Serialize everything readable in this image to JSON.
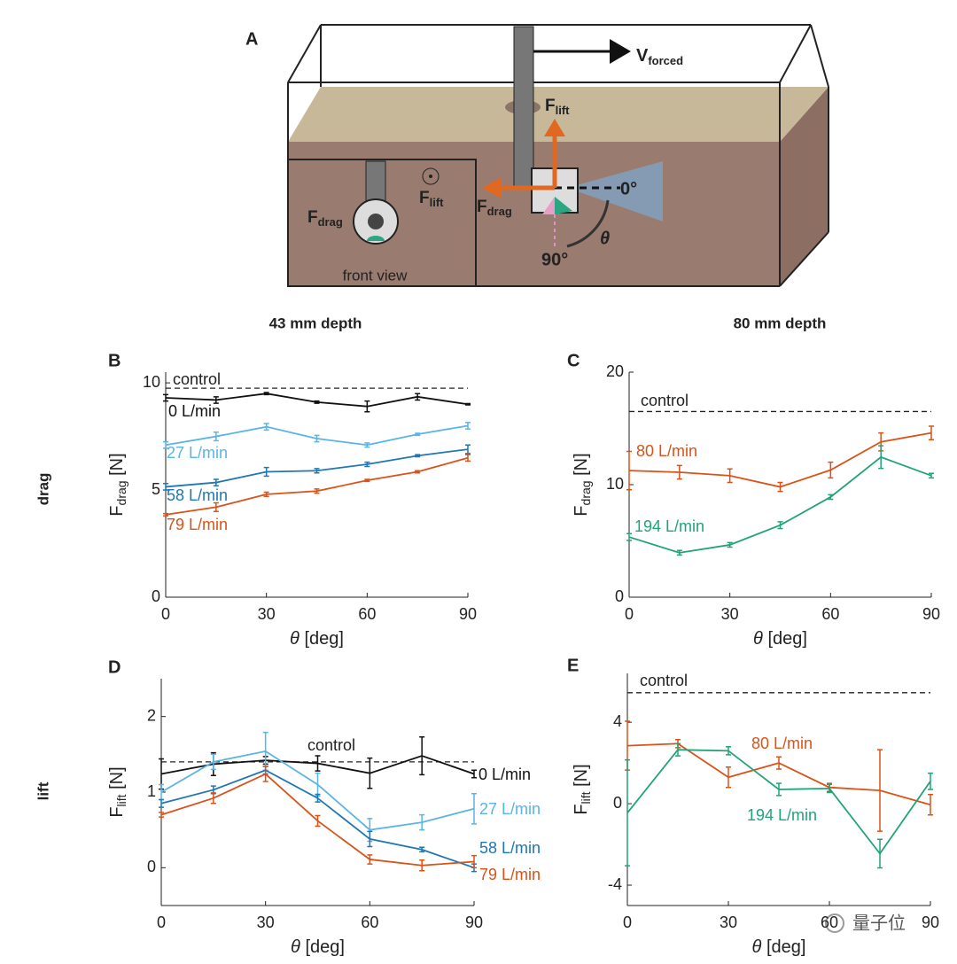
{
  "figure": {
    "col_headers": [
      "43 mm depth",
      "80 mm depth"
    ],
    "row_labels": [
      "drag",
      "lift"
    ],
    "watermark": "量子位"
  },
  "diagram": {
    "label": "A",
    "v_forced": [
      "V",
      "forced"
    ],
    "f_lift": [
      "F",
      "lift"
    ],
    "f_drag": [
      "F",
      "drag"
    ],
    "front_f_lift": [
      "F",
      "lift"
    ],
    "front_f_drag": [
      "F",
      "drag"
    ],
    "angle_0": "0°",
    "angle_theta": "θ",
    "angle_90": "90°",
    "front_view": "front view"
  },
  "chart_data": [
    {
      "type": "line",
      "label": "B",
      "xlabel": [
        "θ",
        " [deg]"
      ],
      "ylabel": [
        "F",
        "drag",
        " [N]"
      ],
      "x": [
        0,
        15,
        30,
        45,
        60,
        75,
        90
      ],
      "xlim": [
        0,
        90
      ],
      "xticks": [
        0,
        30,
        60,
        90
      ],
      "ylim": [
        0,
        10.5
      ],
      "yticks": [
        0,
        5,
        10
      ],
      "reference_line": {
        "label": "control",
        "value": 9.75
      },
      "series": [
        {
          "name": "0 L/min",
          "color": "#111111",
          "values": [
            9.3,
            9.2,
            9.5,
            9.1,
            8.9,
            9.35,
            9.0
          ],
          "errors": [
            0.15,
            0.15,
            0.05,
            0.05,
            0.25,
            0.15,
            0.03
          ]
        },
        {
          "name": "27 L/min",
          "color": "#5ab4e5",
          "values": [
            7.1,
            7.5,
            7.95,
            7.4,
            7.1,
            7.6,
            8.0
          ],
          "errors": [
            0.15,
            0.2,
            0.15,
            0.15,
            0.1,
            0.05,
            0.15
          ]
        },
        {
          "name": "58 L/min",
          "color": "#1f77b4",
          "values": [
            5.15,
            5.35,
            5.85,
            5.9,
            6.2,
            6.6,
            6.9
          ],
          "errors": [
            0.15,
            0.15,
            0.2,
            0.1,
            0.1,
            0.05,
            0.2
          ]
        },
        {
          "name": "79 L/min",
          "color": "#d95319",
          "values": [
            3.85,
            4.2,
            4.8,
            4.95,
            5.45,
            5.85,
            6.5
          ],
          "errors": [
            0.05,
            0.2,
            0.1,
            0.1,
            0.05,
            0.05,
            0.15
          ]
        }
      ]
    },
    {
      "type": "line",
      "label": "C",
      "xlabel": [
        "θ",
        " [deg]"
      ],
      "ylabel": [
        "F",
        "drag",
        " [N]"
      ],
      "x": [
        0,
        15,
        30,
        45,
        60,
        75,
        90
      ],
      "xlim": [
        0,
        90
      ],
      "xticks": [
        0,
        30,
        60,
        90
      ],
      "ylim": [
        0,
        20
      ],
      "yticks": [
        0,
        10,
        20
      ],
      "reference_line": {
        "label": "control",
        "value": 16.5
      },
      "series": [
        {
          "name": "80 L/min",
          "color": "#d95319",
          "values": [
            11.25,
            11.1,
            10.8,
            9.8,
            11.3,
            13.8,
            14.6
          ],
          "errors": [
            1.7,
            0.6,
            0.6,
            0.4,
            0.7,
            0.8,
            0.6
          ]
        },
        {
          "name": "194 L/min",
          "color": "#21a37a",
          "values": [
            5.35,
            3.95,
            4.65,
            6.4,
            8.9,
            12.45,
            10.8
          ],
          "errors": [
            0.3,
            0.2,
            0.2,
            0.3,
            0.2,
            1.0,
            0.2
          ]
        }
      ]
    },
    {
      "type": "line",
      "label": "D",
      "xlabel": [
        "θ",
        " [deg]"
      ],
      "ylabel": [
        "F",
        "lift",
        " [N]"
      ],
      "x": [
        0,
        15,
        30,
        45,
        60,
        75,
        90
      ],
      "xlim": [
        0,
        90
      ],
      "xticks": [
        0,
        30,
        60,
        90
      ],
      "ylim": [
        -0.5,
        2.5
      ],
      "yticks": [
        0,
        1,
        2
      ],
      "reference_line": {
        "label": "control",
        "value": 1.4
      },
      "series": [
        {
          "name": "0 L/min",
          "color": "#111111",
          "values": [
            1.24,
            1.37,
            1.42,
            1.38,
            1.25,
            1.48,
            1.24
          ],
          "errors": [
            0.2,
            0.15,
            0.05,
            0.1,
            0.2,
            0.25,
            0.05
          ]
        },
        {
          "name": "27 L/min",
          "color": "#5ab4e5",
          "values": [
            1.0,
            1.4,
            1.54,
            1.1,
            0.5,
            0.6,
            0.78
          ],
          "errors": [
            0.1,
            0.1,
            0.25,
            0.15,
            0.15,
            0.1,
            0.2
          ]
        },
        {
          "name": "58 L/min",
          "color": "#1f77b4",
          "values": [
            0.85,
            1.03,
            1.29,
            0.92,
            0.38,
            0.24,
            0.0
          ],
          "errors": [
            0.05,
            0.05,
            0.05,
            0.05,
            0.1,
            0.03,
            0.05
          ]
        },
        {
          "name": "79 L/min",
          "color": "#d95319",
          "values": [
            0.7,
            0.92,
            1.24,
            0.62,
            0.11,
            0.03,
            0.08
          ],
          "errors": [
            0.03,
            0.07,
            0.1,
            0.07,
            0.06,
            0.07,
            0.08
          ]
        }
      ]
    },
    {
      "type": "line",
      "label": "E",
      "xlabel": [
        "θ",
        " [deg]"
      ],
      "ylabel": [
        "F",
        "lift",
        " [N]"
      ],
      "x": [
        0,
        15,
        30,
        45,
        60,
        75,
        90
      ],
      "xlim": [
        0,
        90
      ],
      "xticks": [
        0,
        30,
        60,
        90
      ],
      "ylim": [
        -5,
        6.4
      ],
      "yticks": [
        -4,
        0,
        4
      ],
      "reference_line": {
        "label": "control",
        "value": 5.45
      },
      "series": [
        {
          "name": "80 L/min",
          "color": "#d95319",
          "values": [
            2.85,
            2.95,
            1.3,
            2.0,
            0.8,
            0.65,
            -0.05
          ],
          "errors": [
            1.2,
            0.2,
            0.5,
            0.3,
            0.2,
            2.0,
            0.5
          ]
        },
        {
          "name": "194 L/min",
          "color": "#21a37a",
          "values": [
            -0.45,
            2.65,
            2.6,
            0.7,
            0.75,
            -2.45,
            1.1
          ],
          "errors": [
            2.6,
            0.3,
            0.2,
            0.3,
            0.2,
            0.7,
            0.4
          ]
        }
      ]
    }
  ]
}
